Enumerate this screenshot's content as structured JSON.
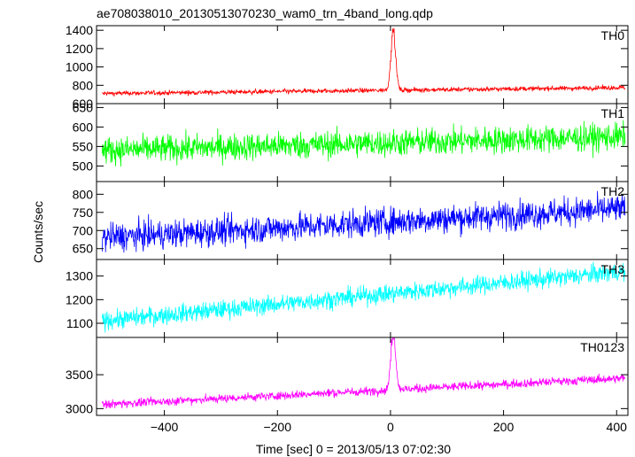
{
  "chart_data": {
    "type": "line",
    "title": "ae708038010_20130513070230_wam0_trn_4band_long.qdp",
    "xlabel": "Time [sec] 0 = 2013/05/13 07:02:30",
    "ylabel": "Counts/sec",
    "xlim": [
      -520,
      420
    ],
    "xticks": [
      -400,
      -200,
      0,
      200,
      400
    ],
    "panels": [
      {
        "name": "TH0",
        "color": "#ff0000",
        "ylim": [
          600,
          1450
        ],
        "yticks": [
          600,
          800,
          1000,
          1200,
          1400
        ],
        "baseline_start": 710,
        "baseline_end": 775,
        "noise": 18,
        "peak": {
          "time": 5,
          "value": 1450,
          "width": 6
        }
      },
      {
        "name": "TH1",
        "color": "#00ff00",
        "ylim": [
          460,
          660
        ],
        "yticks": [
          500,
          550,
          600,
          650
        ],
        "baseline_start": 540,
        "baseline_end": 575,
        "noise": 25,
        "peak": null
      },
      {
        "name": "TH2",
        "color": "#0000ff",
        "ylim": [
          620,
          835
        ],
        "yticks": [
          650,
          700,
          750,
          800
        ],
        "baseline_start": 680,
        "baseline_end": 760,
        "noise": 28,
        "peak": null
      },
      {
        "name": "TH3",
        "color": "#00ffff",
        "ylim": [
          1040,
          1370
        ],
        "yticks": [
          1100,
          1200,
          1300
        ],
        "baseline_start": 1110,
        "baseline_end": 1320,
        "noise": 28,
        "peak": null
      },
      {
        "name": "TH0123",
        "color": "#ff00ff",
        "ylim": [
          2900,
          4050
        ],
        "yticks": [
          3000,
          3500
        ],
        "baseline_start": 3060,
        "baseline_end": 3450,
        "noise": 45,
        "peak": {
          "time": 5,
          "value": 4050,
          "width": 6
        }
      }
    ]
  }
}
